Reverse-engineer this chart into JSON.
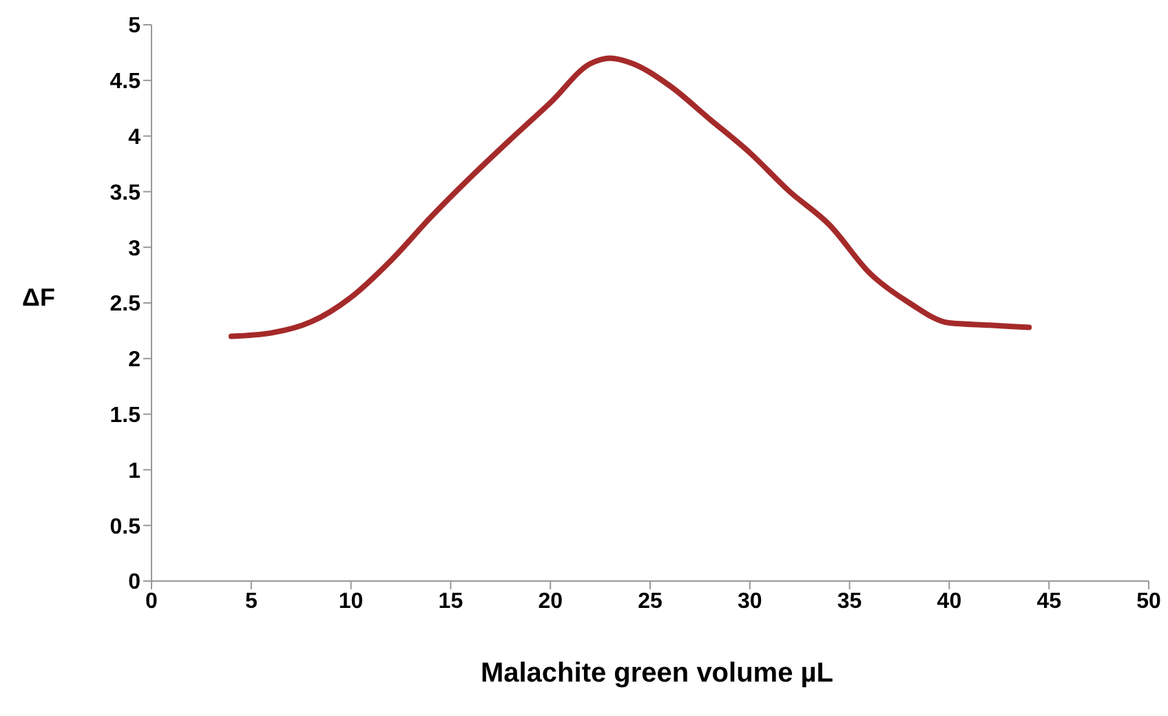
{
  "chart_data": {
    "type": "line",
    "xlabel": "Malachite green volume µL",
    "ylabel": "ΔF",
    "x": [
      4,
      6,
      8,
      10,
      12,
      14,
      16,
      18,
      20,
      22,
      23,
      24,
      26,
      28,
      30,
      32,
      34,
      36,
      38,
      40,
      42,
      44
    ],
    "series": [
      {
        "color": "#a52a2a",
        "values": [
          2.2,
          2.23,
          2.33,
          2.55,
          2.88,
          3.27,
          3.63,
          3.97,
          4.3,
          4.65,
          4.7,
          4.66,
          4.45,
          4.15,
          3.85,
          3.5,
          3.2,
          2.77,
          2.5,
          2.32,
          2.3,
          2.28
        ]
      }
    ],
    "xlim": [
      0,
      50
    ],
    "xticks": [
      0,
      5,
      10,
      15,
      20,
      25,
      30,
      35,
      40,
      45,
      50
    ],
    "ylim": [
      0,
      5
    ],
    "yticks": [
      0,
      0.5,
      1,
      1.5,
      2,
      2.5,
      3,
      3.5,
      4,
      4.5,
      5
    ],
    "grid": false,
    "legend": false,
    "marker": "none",
    "line_style": "solid"
  }
}
